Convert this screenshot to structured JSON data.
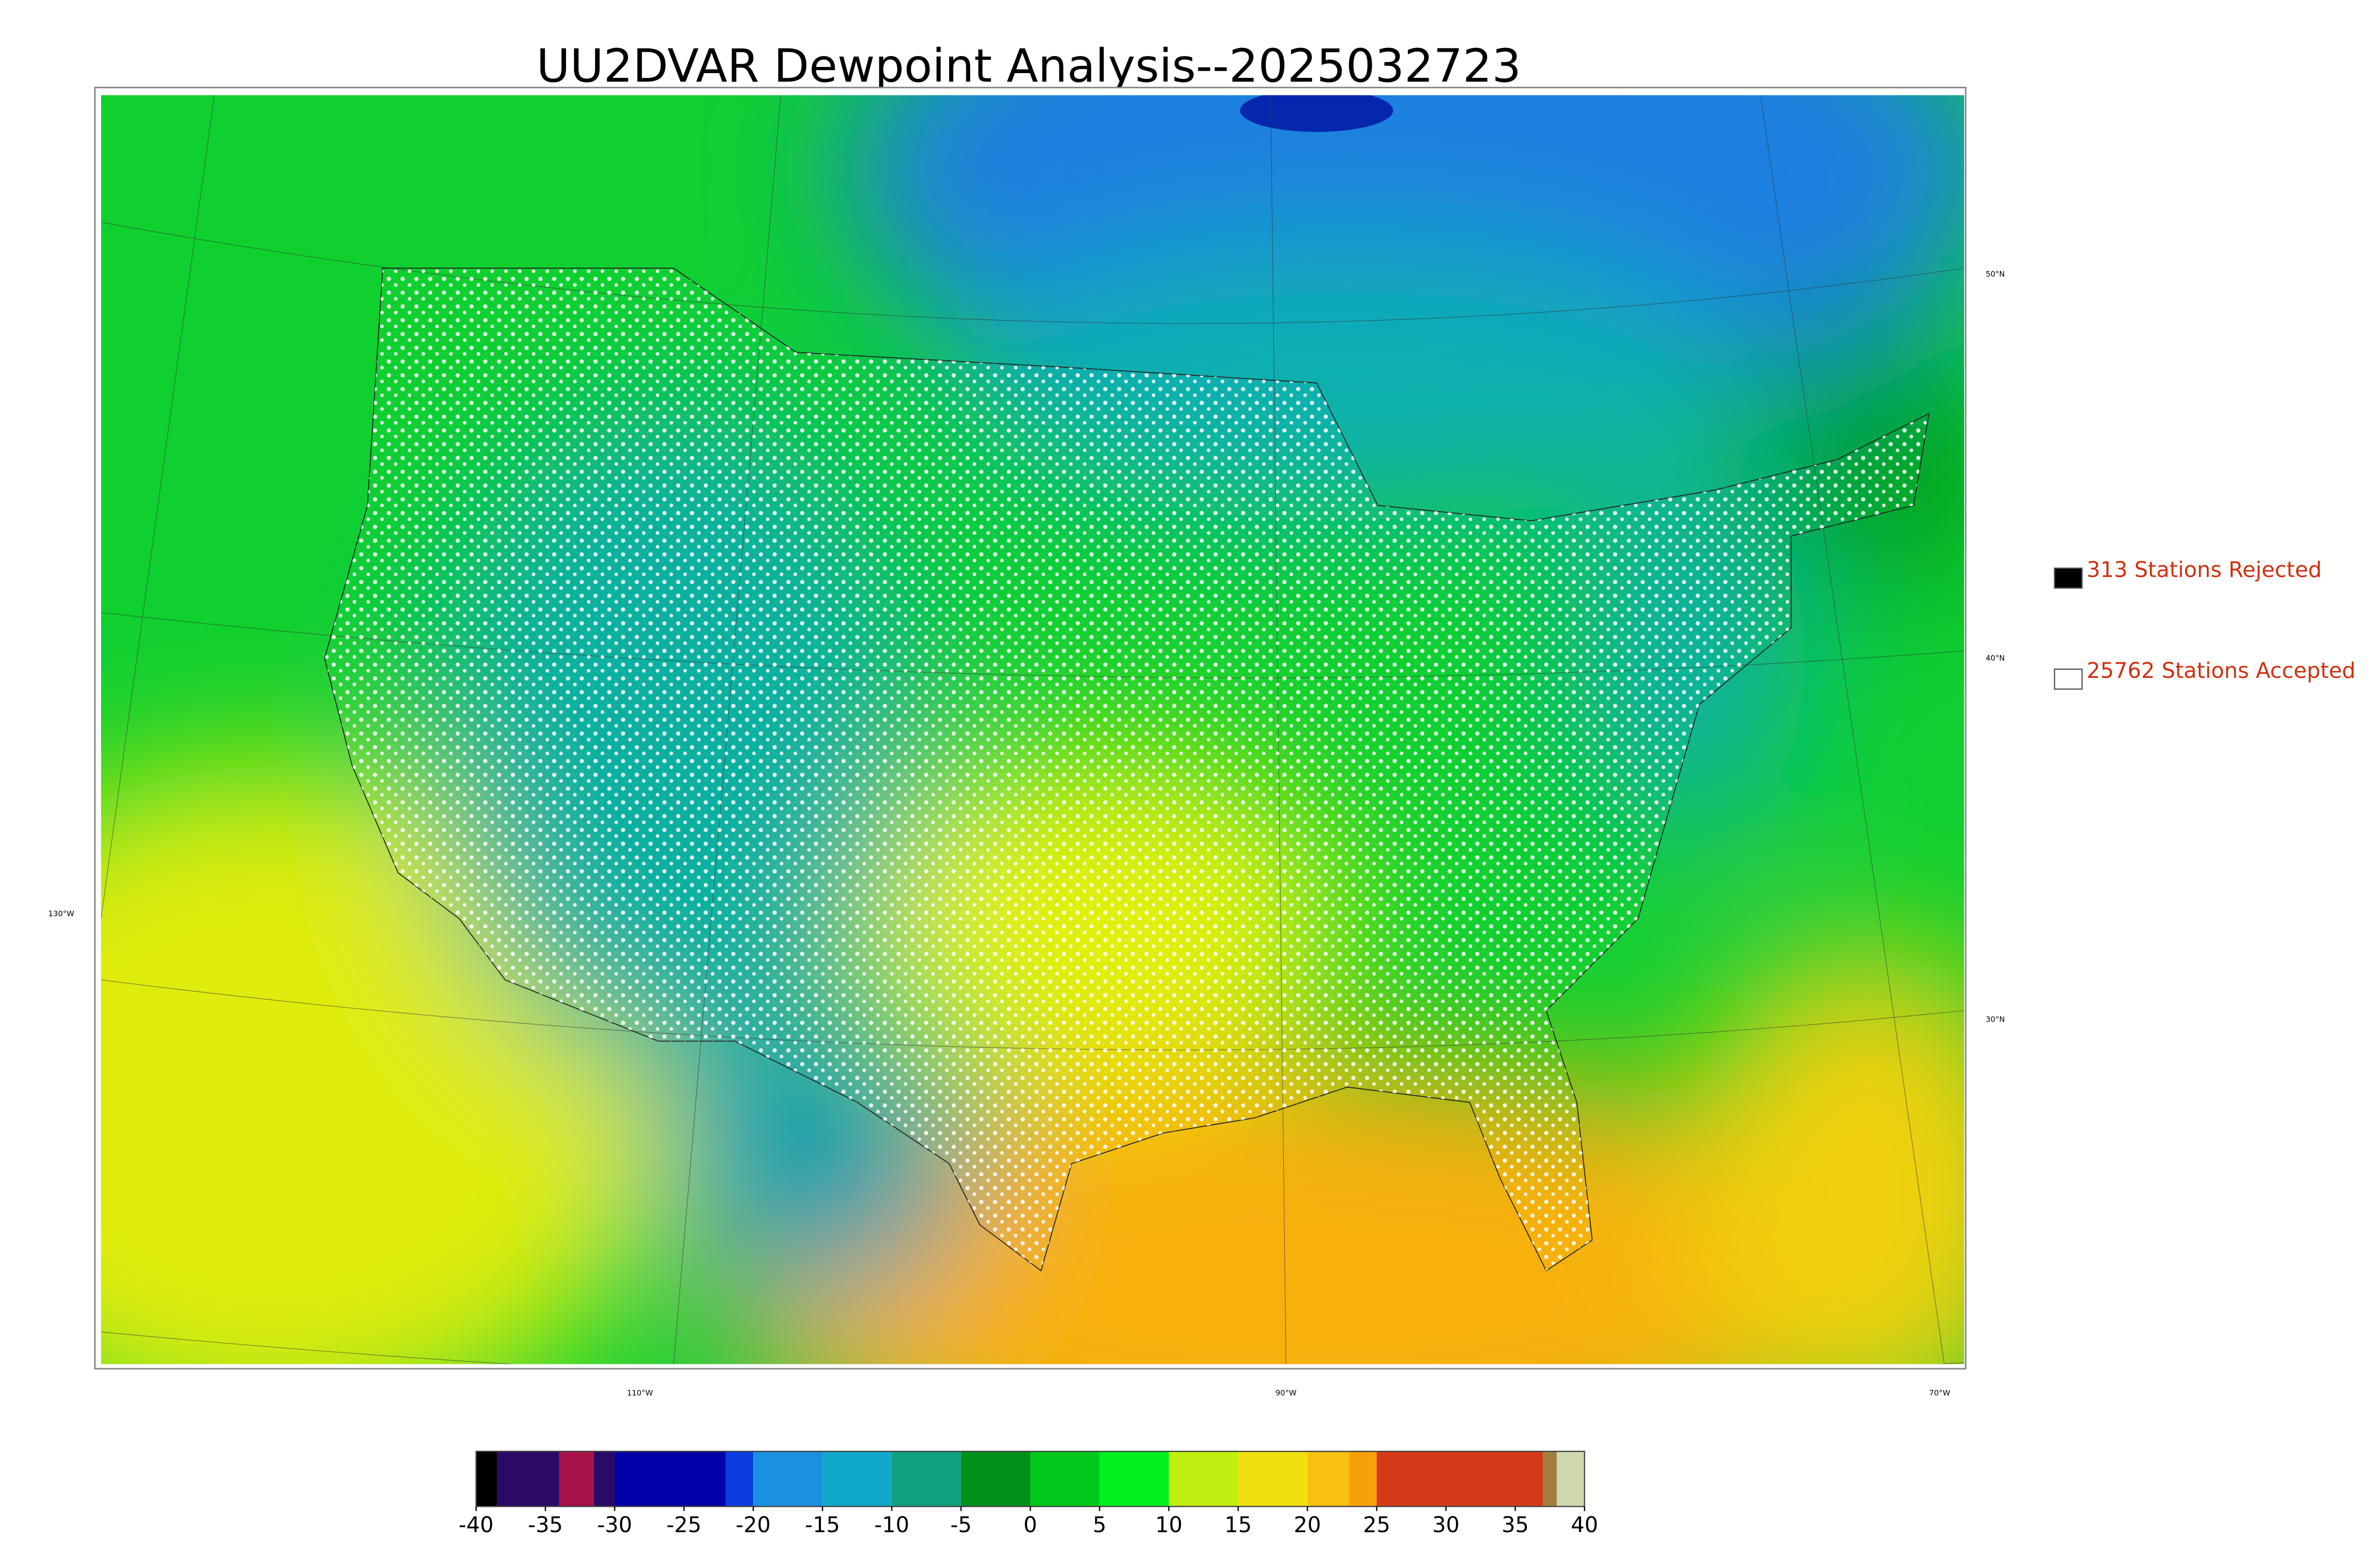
{
  "title": "UU2DVAR Dewpoint Analysis--2025032723",
  "legend": {
    "items": [
      {
        "label": "313 Stations Rejected",
        "color": "#000000"
      },
      {
        "label": "25762 Stations Accepted",
        "color": "#ffffff"
      }
    ]
  },
  "map": {
    "lat_labels": [
      "50°N",
      "40°N",
      "30°N"
    ],
    "lon_labels": [
      "130°W",
      "110°W",
      "90°W",
      "70°W"
    ]
  },
  "colorbar": {
    "range": [
      -40,
      40
    ],
    "ticks": [
      -40,
      -35,
      -30,
      -25,
      -20,
      -15,
      -10,
      -5,
      0,
      5,
      10,
      15,
      20,
      25,
      30,
      35,
      40
    ],
    "segments": [
      {
        "from": -40,
        "to": -38.5,
        "color": "#000000"
      },
      {
        "from": -38.5,
        "to": -34,
        "color": "#2a0a66"
      },
      {
        "from": -34,
        "to": -31.5,
        "color": "#a8104a"
      },
      {
        "from": -31.5,
        "to": -30,
        "color": "#2a0a66"
      },
      {
        "from": -30,
        "to": -22,
        "color": "#0000a8"
      },
      {
        "from": -22,
        "to": -20,
        "color": "#0a3ce0"
      },
      {
        "from": -20,
        "to": -15,
        "color": "#1a90e0"
      },
      {
        "from": -15,
        "to": -10,
        "color": "#10a8c8"
      },
      {
        "from": -10,
        "to": -5,
        "color": "#10a080"
      },
      {
        "from": -5,
        "to": 0,
        "color": "#00901a"
      },
      {
        "from": 0,
        "to": 5,
        "color": "#00c81a"
      },
      {
        "from": 5,
        "to": 10,
        "color": "#00f020"
      },
      {
        "from": 10,
        "to": 15,
        "color": "#c0f010"
      },
      {
        "from": 15,
        "to": 20,
        "color": "#f0e010"
      },
      {
        "from": 20,
        "to": 23,
        "color": "#f8c010"
      },
      {
        "from": 23,
        "to": 25,
        "color": "#f8a008"
      },
      {
        "from": 25,
        "to": 37,
        "color": "#d43a1a"
      },
      {
        "from": 37,
        "to": 38,
        "color": "#a08040"
      },
      {
        "from": 38,
        "to": 40,
        "color": "#d0d8b0"
      }
    ]
  }
}
